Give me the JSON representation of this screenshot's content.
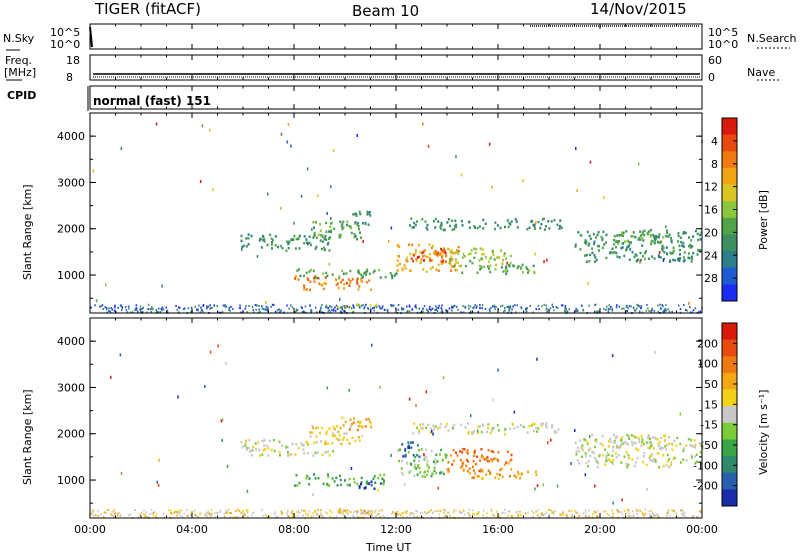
{
  "header": {
    "radar": "TIGER (fitACF)",
    "beam": "Beam 10",
    "date": "14/Nov/2015"
  },
  "strips": {
    "nsky_label": "N.Sky",
    "nsky_ticks": [
      "10^5",
      "10^0"
    ],
    "nsearch_label": "N.Search",
    "freq_label": "Freq.",
    "freq_unit": "[MHz]",
    "freq_ticks": [
      "18",
      "8"
    ],
    "nave_label": "Nave",
    "nave_ticks": [
      "60",
      "0"
    ],
    "cpid_label": "CPID",
    "cpid_value": "normal (fast) 151"
  },
  "chart_data": [
    {
      "type": "heatmap",
      "name": "power",
      "ylabel": "Slant Range [km]",
      "xlabel": "",
      "x_ticks": [
        "00:00",
        "04:00",
        "08:00",
        "12:00",
        "16:00",
        "20:00",
        "00:00"
      ],
      "xlim": [
        0,
        24
      ],
      "ylim": [
        180,
        4500
      ],
      "y_ticks": [
        1000,
        2000,
        3000,
        4000
      ],
      "colorbar": {
        "label": "Power [dB]",
        "ticks": [
          "4",
          "8",
          "12",
          "16",
          "20",
          "24",
          "28"
        ],
        "colors": [
          "#1a2cf0",
          "#1f5bd0",
          "#2e7d8a",
          "#3d8f62",
          "#4fa44a",
          "#8cc63f",
          "#d9c624",
          "#f2a514",
          "#f07a12",
          "#e84a10",
          "#d91a0c"
        ]
      },
      "regions": [
        {
          "t0": 5.9,
          "t1": 9.5,
          "r0": 1550,
          "r1": 1900,
          "level": 3
        },
        {
          "t0": 8.5,
          "t1": 10.6,
          "r0": 1800,
          "r1": 2200,
          "level": 4
        },
        {
          "t0": 9.8,
          "t1": 11.0,
          "r0": 2100,
          "r1": 2400,
          "level": 3
        },
        {
          "t0": 8.0,
          "t1": 11.0,
          "r0": 700,
          "r1": 1000,
          "level": 8
        },
        {
          "t0": 8.0,
          "t1": 12.0,
          "r0": 950,
          "r1": 1150,
          "level": 4
        },
        {
          "t0": 12.0,
          "t1": 14.5,
          "r0": 1100,
          "r1": 1700,
          "level": 7
        },
        {
          "t0": 12.5,
          "t1": 14.0,
          "r0": 1300,
          "r1": 1600,
          "level": 9
        },
        {
          "t0": 14.0,
          "t1": 16.5,
          "r0": 1200,
          "r1": 1600,
          "level": 5
        },
        {
          "t0": 14.5,
          "t1": 17.5,
          "r0": 1050,
          "r1": 1250,
          "level": 4
        },
        {
          "t0": 12.5,
          "t1": 18.5,
          "r0": 2000,
          "r1": 2250,
          "level": 3
        },
        {
          "t0": 19.0,
          "t1": 24.0,
          "r0": 1300,
          "r1": 2000,
          "level": 3
        },
        {
          "t0": 20.5,
          "t1": 22.5,
          "r0": 1700,
          "r1": 2000,
          "level": 4
        },
        {
          "t0": 9.6,
          "t1": 11.2,
          "r0": 300,
          "r1": 420,
          "level": 6
        }
      ]
    },
    {
      "type": "heatmap",
      "name": "velocity",
      "ylabel": "Slant Range [km]",
      "xlabel": "Time UT",
      "x_ticks": [
        "00:00",
        "04:00",
        "08:00",
        "12:00",
        "16:00",
        "20:00",
        "00:00"
      ],
      "xlim": [
        0,
        24
      ],
      "ylim": [
        180,
        4500
      ],
      "y_ticks": [
        1000,
        2000,
        3000,
        4000
      ],
      "colorbar": {
        "label": "Velocity [m s⁻¹]",
        "ticks": [
          "200",
          "100",
          "50",
          "15",
          "-15",
          "-50",
          "-100",
          "-200"
        ],
        "colors": [
          "#1a2ca8",
          "#2a5fb0",
          "#2e8a6a",
          "#3aa646",
          "#7ccc3a",
          "#c8c8c8",
          "#f2d218",
          "#f2a814",
          "#f07a12",
          "#e84a10",
          "#d91a0c"
        ]
      },
      "regions": [
        {
          "t0": 5.9,
          "t1": 9.5,
          "r0": 1550,
          "r1": 1900,
          "level": 5
        },
        {
          "t0": 8.5,
          "t1": 10.6,
          "r0": 1800,
          "r1": 2200,
          "level": 6
        },
        {
          "t0": 9.8,
          "t1": 11.0,
          "r0": 2100,
          "r1": 2400,
          "level": 7
        },
        {
          "t0": 8.0,
          "t1": 11.5,
          "r0": 900,
          "r1": 1150,
          "level": 3
        },
        {
          "t0": 10.5,
          "t1": 11.5,
          "r0": 800,
          "r1": 1000,
          "level": 0
        },
        {
          "t0": 12.0,
          "t1": 14.0,
          "r0": 1100,
          "r1": 1700,
          "level": 4
        },
        {
          "t0": 12.2,
          "t1": 13.0,
          "r0": 1500,
          "r1": 1900,
          "level": 1
        },
        {
          "t0": 14.0,
          "t1": 16.5,
          "r0": 1200,
          "r1": 1700,
          "level": 8
        },
        {
          "t0": 14.5,
          "t1": 17.5,
          "r0": 1050,
          "r1": 1250,
          "level": 7
        },
        {
          "t0": 12.5,
          "t1": 18.5,
          "r0": 2000,
          "r1": 2250,
          "level": 5
        },
        {
          "t0": 19.0,
          "t1": 24.0,
          "r0": 1300,
          "r1": 2000,
          "level": 5
        },
        {
          "t0": 20.5,
          "t1": 22.5,
          "r0": 1700,
          "r1": 2000,
          "level": 5
        },
        {
          "t0": 9.6,
          "t1": 11.2,
          "r0": 300,
          "r1": 420,
          "level": 7
        }
      ]
    }
  ]
}
